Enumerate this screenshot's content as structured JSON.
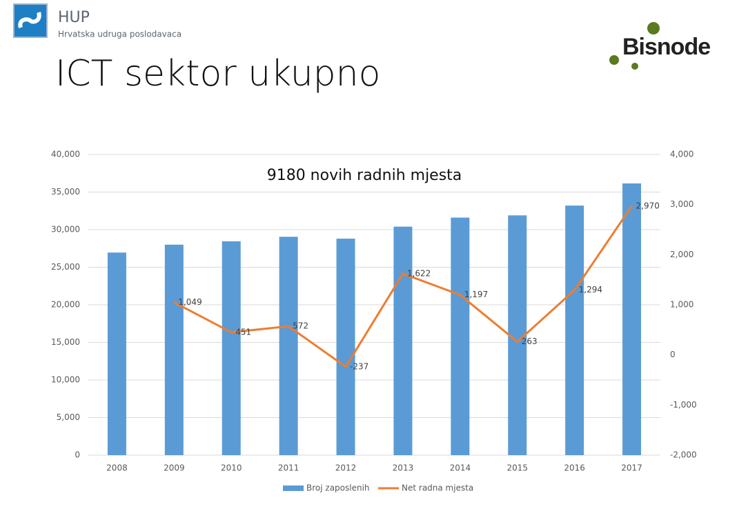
{
  "header": {
    "logo_name": "HUP",
    "logo_subtitle": "Hrvatska udruga poslodavaca",
    "title": "ICT sektor ukupno",
    "brand": "Bisnode"
  },
  "chart_data": {
    "type": "bar",
    "title": "9180 novih radnih mjesta",
    "categories": [
      "2008",
      "2009",
      "2010",
      "2011",
      "2012",
      "2013",
      "2014",
      "2015",
      "2016",
      "2017"
    ],
    "series": [
      {
        "name": "Broj zaposlenih",
        "type": "bar",
        "color": "#5b9bd5",
        "values": [
          26950,
          28000,
          28450,
          29050,
          28800,
          30400,
          31600,
          31900,
          33200,
          36150
        ]
      },
      {
        "name": "Net radna mjesta",
        "type": "line",
        "axis": "y2",
        "color": "#ed7d31",
        "values": [
          null,
          1049,
          451,
          572,
          -237,
          1622,
          1197,
          263,
          1294,
          2970
        ],
        "value_labels": [
          null,
          "1,049",
          "451",
          "572",
          "-237",
          "1,622",
          "1,197",
          "263",
          "1,294",
          "2,970"
        ]
      }
    ],
    "ylim": [
      0,
      40000
    ],
    "yticks": [
      0,
      {
        "value": 5000,
        "label": "5,000"
      },
      {
        "value": 10000,
        "label": "10,000"
      },
      {
        "value": 15000,
        "label": "15,000"
      },
      {
        "value": 20000,
        "label": "20,000"
      },
      {
        "value": 25000,
        "label": "25,000"
      },
      {
        "value": 30000,
        "label": "30,000"
      },
      {
        "value": 35000,
        "label": "35,000"
      },
      {
        "value": 40000,
        "label": "40,000"
      }
    ],
    "y2lim": [
      -2000,
      4000
    ],
    "y2ticks": [
      {
        "value": -2000,
        "label": "-2,000"
      },
      {
        "value": -1000,
        "label": "-1,000"
      },
      0,
      {
        "value": 1000,
        "label": "1,000"
      },
      {
        "value": 2000,
        "label": "2,000"
      },
      {
        "value": 3000,
        "label": "3,000"
      },
      {
        "value": 4000,
        "label": "4,000"
      }
    ],
    "grid": true,
    "legend": "bottom"
  }
}
